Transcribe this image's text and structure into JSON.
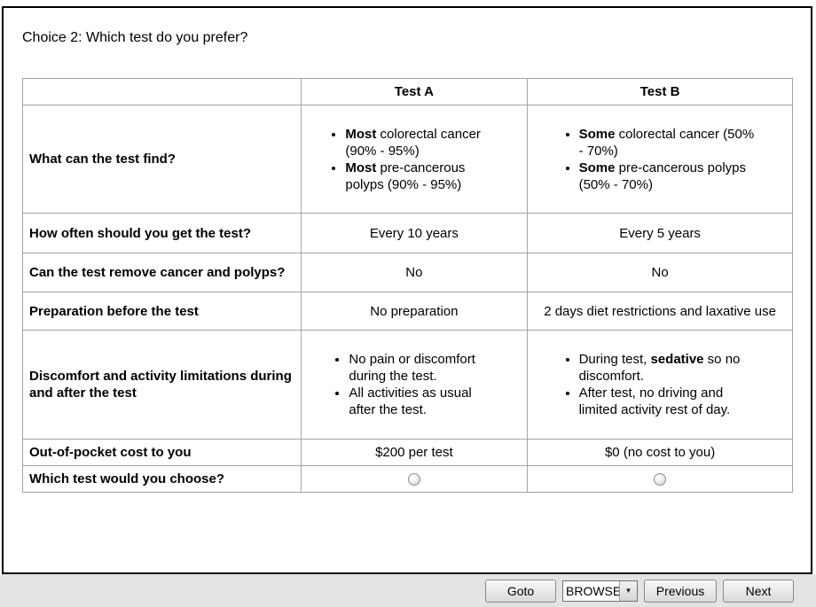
{
  "page": {
    "title": "Choice 2: Which test do you prefer?"
  },
  "table": {
    "col_headers": [
      "",
      "Test A",
      "Test B"
    ],
    "rows": [
      {
        "label": "What can the test find?",
        "a_items": [
          {
            "pre": "",
            "bold": "Most",
            "post": " colorectal cancer (90% - 95%)"
          },
          {
            "pre": "",
            "bold": "Most",
            "post": " pre-cancerous polyps (90% - 95%)"
          }
        ],
        "b_items": [
          {
            "pre": "",
            "bold": "Some",
            "post": " colorectal cancer (50% - 70%)"
          },
          {
            "pre": "",
            "bold": "Some",
            "post": " pre-cancerous polyps (50% - 70%)"
          }
        ]
      },
      {
        "label": "How often should you get the test?",
        "a": "Every 10 years",
        "b": "Every 5 years"
      },
      {
        "label": "Can the test remove cancer and polyps?",
        "a": "No",
        "b": "No"
      },
      {
        "label": "Preparation before the test",
        "a": "No preparation",
        "b": "2 days diet restrictions and laxative use"
      },
      {
        "label": "Discomfort and activity limitations during and after the test",
        "a_items": [
          {
            "pre": "No pain or discomfort during the test.",
            "bold": "",
            "post": ""
          },
          {
            "pre": "All activities as usual after the test.",
            "bold": "",
            "post": ""
          }
        ],
        "b_items": [
          {
            "pre": "During test, ",
            "bold": "sedative",
            "post": " so no discomfort."
          },
          {
            "pre": "After test, no driving and limited activity rest of day.",
            "bold": "",
            "post": ""
          }
        ]
      },
      {
        "label": "Out-of-pocket cost to you",
        "a": "$200 per test",
        "b": "$0 (no cost to you)"
      },
      {
        "label": "Which test would you choose?"
      }
    ]
  },
  "footer": {
    "goto_label": "Goto",
    "mode_value": "BROWSE",
    "previous_label": "Previous",
    "next_label": "Next"
  },
  "colors": {
    "window_border": "#000000",
    "table_border": "#a3a3a3",
    "footer_bar": "#e4e4e4"
  }
}
